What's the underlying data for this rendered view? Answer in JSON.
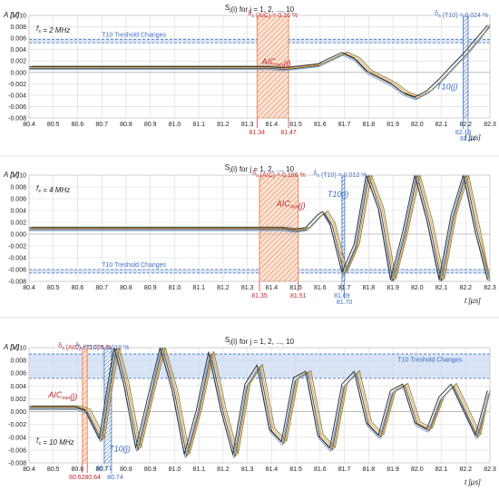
{
  "colors": {
    "aic": "#e8743b",
    "t10": "#3a6fc4",
    "band": "#c9daf2",
    "red_text": "#c0262b",
    "grid": "#d9d9d9",
    "series": [
      "#4d4d4d",
      "#e8a23b",
      "#7aa0d4",
      "#8a8a5a",
      "#333333"
    ]
  },
  "chart_data": [
    {
      "type": "line",
      "title": "S_j(i) for j = 1, 2, ..., 10",
      "ylabel": "A  [V]",
      "xlabel": "t [µs]",
      "xlim": [
        80.4,
        82.3
      ],
      "ylim": [
        -0.008,
        0.01
      ],
      "x_ticks": [
        "80.4",
        "80.5",
        "80.6",
        "80.7",
        "80.8",
        "80.9",
        "81.0",
        "81.1",
        "81.2",
        "81.3",
        "81.4",
        "81.5",
        "81.6",
        "81.7",
        "81.8",
        "81.9",
        "82.0",
        "82.1",
        "82.2",
        "82.3"
      ],
      "y_ticks": [
        "0.010",
        "0.008",
        "0.006",
        "0.004",
        "0.002",
        "0.000",
        "-0.002",
        "-0.004",
        "-0.006",
        "-0.008"
      ],
      "fs_label": "f_s = 2 MHz",
      "threshold_label": "T10 Treshold Changes",
      "threshold_band": [
        0.0052,
        0.0058
      ],
      "aic_label": "AIC_min(j)",
      "aic_delta": "δ_s (AIC) = 0.16 %",
      "aic_range": [
        81.34,
        81.47
      ],
      "aic_marks": [
        "81.34",
        "81.47"
      ],
      "t10_label": "T10(j)",
      "t10_delta": "δ_s (T10) = 0.024 %",
      "t10_range": [
        82.19,
        82.21
      ],
      "t10_marks": [
        "82.19",
        "82.21"
      ],
      "grid": true,
      "series_points": [
        [
          80.4,
          0.0007
        ],
        [
          81.4,
          0.0007
        ],
        [
          81.45,
          0.0005
        ],
        [
          81.5,
          0.0007
        ],
        [
          81.6,
          0.0012
        ],
        [
          81.65,
          0.0022
        ],
        [
          81.7,
          0.0032
        ],
        [
          81.75,
          0.0022
        ],
        [
          81.8,
          0.0
        ],
        [
          81.9,
          -0.0022
        ],
        [
          81.95,
          -0.0038
        ],
        [
          82.0,
          -0.0046
        ],
        [
          82.05,
          -0.0035
        ],
        [
          82.1,
          -0.0015
        ],
        [
          82.15,
          0.0008
        ],
        [
          82.2,
          0.003
        ],
        [
          82.25,
          0.0055
        ],
        [
          82.3,
          0.008
        ]
      ]
    },
    {
      "type": "line",
      "title": "S_j(i) for j = 1, 2, ..., 10",
      "ylabel": "A  [V]",
      "xlabel": "t [µs]",
      "xlim": [
        80.4,
        82.3
      ],
      "ylim": [
        -0.008,
        0.01
      ],
      "x_ticks": [
        "80.4",
        "80.5",
        "80.6",
        "80.7",
        "80.8",
        "80.9",
        "81.0",
        "81.1",
        "81.2",
        "81.3",
        "81.4",
        "81.5",
        "81.6",
        "81.7",
        "81.8",
        "81.9",
        "82.0",
        "82.1",
        "82.2",
        "82.3"
      ],
      "y_ticks": [
        "0.010",
        "0.008",
        "0.006",
        "0.004",
        "0.002",
        "0.000",
        "-0.002",
        "-0.004",
        "-0.006",
        "-0.008"
      ],
      "fs_label": "f_s = 4 MHz",
      "threshold_label": "T10 Treshold Changes",
      "threshold_band": [
        -0.0066,
        -0.006
      ],
      "aic_label": "AIC_min(j)",
      "aic_delta": "δ_s (AIC) = 0.196 %",
      "aic_range": [
        81.35,
        81.51
      ],
      "aic_marks": [
        "81.35",
        "81.51"
      ],
      "t10_label": "T10(j)",
      "t10_delta": "δ_s (T10) = 0.012 %",
      "t10_range": [
        81.69,
        81.7
      ],
      "t10_marks": [
        "81.69",
        "81.70"
      ],
      "grid": true,
      "series_points": [
        [
          80.4,
          0.0008
        ],
        [
          81.45,
          0.0008
        ],
        [
          81.5,
          0.0005
        ],
        [
          81.55,
          0.0008
        ],
        [
          81.6,
          0.003
        ],
        [
          81.62,
          0.0035
        ],
        [
          81.65,
          0.0015
        ],
        [
          81.7,
          -0.0068
        ],
        [
          81.75,
          -0.002
        ],
        [
          81.8,
          0.01
        ],
        [
          81.85,
          0.004
        ],
        [
          81.9,
          -0.008
        ],
        [
          81.95,
          0.0
        ],
        [
          82.0,
          0.01
        ],
        [
          82.05,
          0.002
        ],
        [
          82.1,
          -0.008
        ],
        [
          82.15,
          0.003
        ],
        [
          82.2,
          0.01
        ],
        [
          82.25,
          0.0
        ],
        [
          82.3,
          -0.008
        ]
      ]
    },
    {
      "type": "line",
      "title": "S_j(i) for j = 1, 2, ..., 10",
      "ylabel": "A  [V]",
      "xlabel": "t [µs]",
      "xlim": [
        80.4,
        82.3
      ],
      "ylim": [
        -0.008,
        0.01
      ],
      "x_ticks": [
        "80.4",
        "80.5",
        "80.6",
        "80.7",
        "80.8",
        "80.9",
        "81.0",
        "81.1",
        "81.2",
        "81.3",
        "81.4",
        "81.5",
        "81.6",
        "81.7",
        "81.8",
        "81.9",
        "82.0",
        "82.1",
        "82.2",
        "82.3"
      ],
      "y_ticks": [
        "0.010",
        "0.008",
        "0.006",
        "0.004",
        "0.002",
        "0.000",
        "-0.002",
        "-0.004",
        "-0.006",
        "-0.008"
      ],
      "fs_label": "f_s = 10 MHz",
      "threshold_label": "T10 Treshold Changes",
      "threshold_band": [
        0.0052,
        0.009
      ],
      "aic_label": "AIC_min(j)",
      "aic_delta": "δ_s (AIC) = 0.025 %",
      "aic_range": [
        80.62,
        80.64
      ],
      "aic_marks": [
        "80.62",
        "80.64"
      ],
      "t10_label": "T10(j)",
      "t10_delta": "δ_s (T10) = 0.019 %",
      "t10_range": [
        80.71,
        80.74
      ],
      "t10_marks": [
        "80.71",
        "80.74"
      ],
      "grid": true,
      "series_points": [
        [
          80.4,
          0.0005
        ],
        [
          80.6,
          0.0005
        ],
        [
          80.64,
          0.0
        ],
        [
          80.68,
          -0.003
        ],
        [
          80.7,
          -0.0045
        ],
        [
          80.73,
          0.003
        ],
        [
          80.76,
          0.01
        ],
        [
          80.8,
          0.004
        ],
        [
          80.85,
          -0.006
        ],
        [
          80.9,
          0.002
        ],
        [
          80.95,
          0.01
        ],
        [
          81.0,
          0.003
        ],
        [
          81.05,
          -0.007
        ],
        [
          81.1,
          0.0
        ],
        [
          81.15,
          0.009
        ],
        [
          81.2,
          0.0
        ],
        [
          81.25,
          -0.007
        ],
        [
          81.3,
          0.004
        ],
        [
          81.35,
          0.007
        ],
        [
          81.4,
          -0.003
        ],
        [
          81.45,
          -0.005
        ],
        [
          81.5,
          0.005
        ],
        [
          81.55,
          0.006
        ],
        [
          81.6,
          -0.004
        ],
        [
          81.65,
          -0.006
        ],
        [
          81.7,
          0.004
        ],
        [
          81.75,
          0.006
        ],
        [
          81.8,
          -0.002
        ],
        [
          81.85,
          -0.004
        ],
        [
          81.9,
          0.003
        ],
        [
          81.95,
          0.004
        ],
        [
          82.0,
          -0.002
        ],
        [
          82.05,
          -0.003
        ],
        [
          82.1,
          0.002
        ],
        [
          82.15,
          0.004
        ],
        [
          82.2,
          0.0
        ],
        [
          82.25,
          -0.004
        ],
        [
          82.3,
          0.003
        ]
      ]
    }
  ]
}
